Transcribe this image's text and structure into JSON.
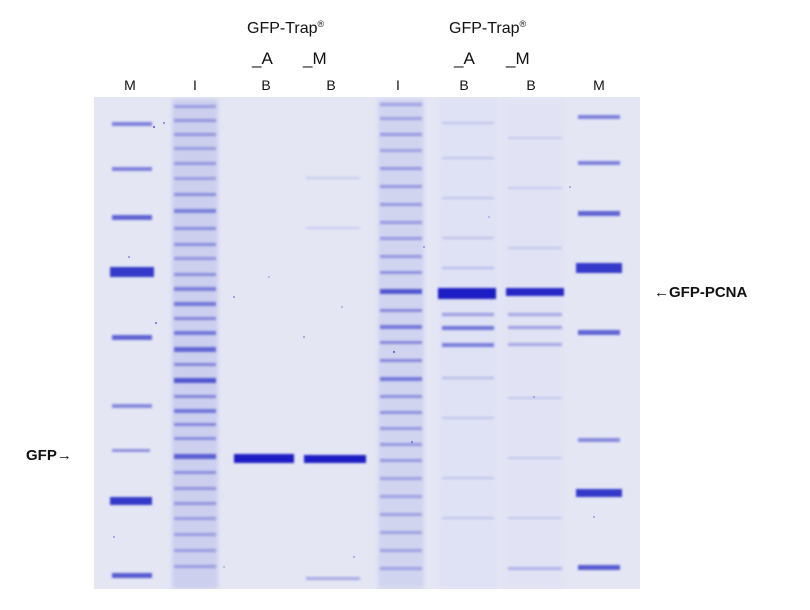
{
  "groups": [
    {
      "title": "GFP-Trap",
      "reg": "®",
      "sub_left": "_A",
      "sub_right": "_M"
    },
    {
      "title": "GFP-Trap",
      "reg": "®",
      "sub_left": "_A",
      "sub_right": "_M"
    }
  ],
  "lanes": [
    "M",
    "I",
    "B",
    "B",
    "I",
    "B",
    "B",
    "M"
  ],
  "annotations": {
    "gfp_pcna": "GFP-PCNA",
    "gfp": "GFP"
  },
  "colors": {
    "gel_background": "#e7e9f6",
    "band": "#1a1fc4",
    "text": "#111111"
  }
}
